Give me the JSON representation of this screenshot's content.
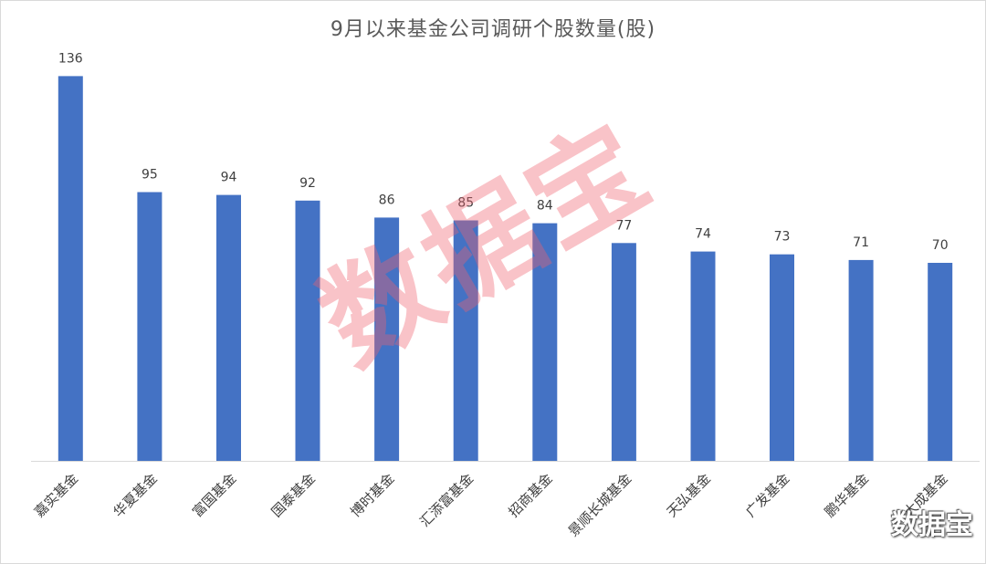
{
  "chart_data": {
    "type": "bar",
    "title": "9月以来基金公司调研个股数量(股)",
    "categories": [
      "嘉实基金",
      "华夏基金",
      "富国基金",
      "国泰基金",
      "博时基金",
      "汇添富基金",
      "招商基金",
      "景顺长城基金",
      "天弘基金",
      "广发基金",
      "鹏华基金",
      "大成基金"
    ],
    "values": [
      136,
      95,
      94,
      92,
      86,
      85,
      84,
      77,
      74,
      73,
      71,
      70
    ],
    "ylim": [
      0,
      140
    ],
    "grid": false,
    "bar_color": "#4472c4",
    "data_labels": true
  },
  "watermark": {
    "center_text": "数据宝",
    "corner_text": "数据宝"
  }
}
